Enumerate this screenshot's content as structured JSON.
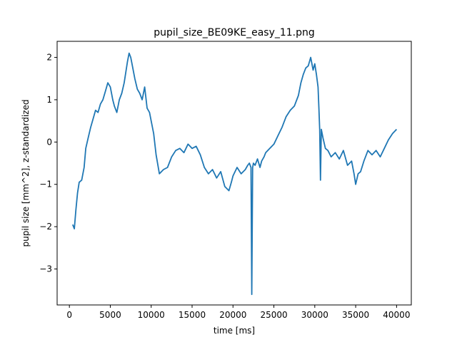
{
  "chart_data": {
    "type": "line",
    "title": "pupil_size_BE09KE_easy_11.png",
    "xlabel": "time [ms]",
    "ylabel": "pupil size [mm^2], z-standardized",
    "xlim": [
      -1500,
      41800
    ],
    "ylim": [
      -3.85,
      2.38
    ],
    "xticks": [
      0,
      5000,
      10000,
      15000,
      20000,
      25000,
      30000,
      35000,
      40000
    ],
    "xtick_labels": [
      "0",
      "5000",
      "10000",
      "15000",
      "20000",
      "25000",
      "30000",
      "35000",
      "40000"
    ],
    "yticks": [
      2,
      1,
      0,
      -1,
      -2,
      -3
    ],
    "ytick_labels": [
      "2",
      "1",
      "0",
      "−1",
      "−2",
      "−3"
    ],
    "grid": false,
    "line_color": "#1f77b4",
    "series": [
      {
        "x": [
          400,
          600,
          800,
          1000,
          1200,
          1500,
          1800,
          2000,
          2300,
          2600,
          2900,
          3200,
          3500,
          3800,
          4100,
          4400,
          4700,
          5000,
          5300,
          5500,
          5800,
          6100,
          6400,
          6700,
          6900,
          7100,
          7300,
          7500,
          7700,
          8000,
          8300,
          8600,
          8900,
          9200,
          9500,
          9800,
          10000,
          10300,
          10600,
          11000,
          11500,
          12000,
          12500,
          13000,
          13500,
          14000,
          14500,
          15000,
          15500,
          16000,
          16500,
          17000,
          17500,
          18000,
          18500,
          19000,
          19500,
          19800,
          20000,
          20500,
          21000,
          21500,
          21800,
          22000,
          22200,
          22300,
          22400,
          22500,
          22700,
          23000,
          23300,
          23500,
          23800,
          24000,
          24500,
          25000,
          25500,
          26000,
          26500,
          27000,
          27500,
          28000,
          28300,
          28600,
          28900,
          29200,
          29500,
          29800,
          30000,
          30200,
          30400,
          30500,
          30600,
          30700,
          30800,
          31000,
          31300,
          31600,
          32000,
          32500,
          33000,
          33500,
          34000,
          34500,
          34800,
          35000,
          35300,
          35600,
          36000,
          36500,
          37000,
          37500,
          38000,
          38500,
          39000,
          39500,
          40000
        ],
        "y": [
          -1.95,
          -2.05,
          -1.6,
          -1.2,
          -0.95,
          -0.9,
          -0.6,
          -0.15,
          0.1,
          0.35,
          0.55,
          0.75,
          0.7,
          0.9,
          1.0,
          1.2,
          1.4,
          1.3,
          1.0,
          0.85,
          0.7,
          1.0,
          1.15,
          1.4,
          1.65,
          1.9,
          2.1,
          2.0,
          1.8,
          1.5,
          1.25,
          1.15,
          1.0,
          1.3,
          0.8,
          0.7,
          0.5,
          0.2,
          -0.3,
          -0.75,
          -0.65,
          -0.6,
          -0.35,
          -0.2,
          -0.15,
          -0.25,
          -0.05,
          -0.15,
          -0.1,
          -0.3,
          -0.6,
          -0.75,
          -0.65,
          -0.85,
          -0.7,
          -1.05,
          -1.15,
          -0.95,
          -0.8,
          -0.6,
          -0.75,
          -0.65,
          -0.55,
          -0.5,
          -0.6,
          -3.6,
          -0.6,
          -0.5,
          -0.55,
          -0.4,
          -0.6,
          -0.45,
          -0.35,
          -0.25,
          -0.15,
          -0.05,
          0.15,
          0.35,
          0.6,
          0.75,
          0.85,
          1.1,
          1.4,
          1.6,
          1.75,
          1.8,
          2.0,
          1.7,
          1.85,
          1.6,
          1.3,
          0.8,
          0.3,
          -0.9,
          0.3,
          0.1,
          -0.15,
          -0.2,
          -0.35,
          -0.25,
          -0.4,
          -0.2,
          -0.55,
          -0.45,
          -0.75,
          -1.0,
          -0.75,
          -0.7,
          -0.45,
          -0.2,
          -0.3,
          -0.2,
          -0.35,
          -0.15,
          0.05,
          0.2,
          0.3
        ]
      }
    ]
  }
}
